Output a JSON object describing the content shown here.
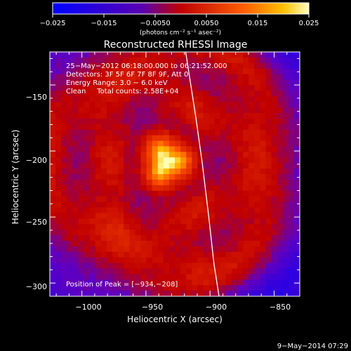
{
  "chart_data": {
    "type": "heatmap",
    "title": "Reconstructed RHESSI Image",
    "xlabel": "Heliocentric X (arcsec)",
    "ylabel": "Heliocentric Y (arcsec)",
    "xlim": [
      -1025,
      -830
    ],
    "ylim": [
      -310,
      -125
    ],
    "x_ticks": [
      -1000,
      -950,
      -900,
      -850
    ],
    "x_tick_labels": [
      "−1000",
      "−950",
      "−900",
      "−850"
    ],
    "y_ticks": [
      -150,
      -200,
      -250,
      -300
    ],
    "y_tick_labels": [
      "−150",
      "−200",
      "−250",
      "−300"
    ],
    "colorbar": {
      "range": [
        -0.025,
        0.025
      ],
      "ticks": [
        -0.025,
        -0.015,
        -0.005,
        0.005,
        0.015,
        0.025
      ],
      "tick_labels": [
        "−0.025",
        "−0.015",
        "−0.0050",
        "0.0050",
        "0.015",
        "0.025"
      ],
      "units": "(photons cm⁻² s⁻¹ asec⁻²)",
      "colors": [
        "#0000ff",
        "#6000c0",
        "#c00000",
        "#ff5000",
        "#ffc000",
        "#ffffb0"
      ]
    },
    "annotations": [
      "25−May−2012 06:18:00.000 to 06:21:52.000",
      "Detectors: 3F 5F 6F 7F 8F 9F, Att 0",
      "Energy Range: 3.0 − 6.0 keV",
      "Clean     Total counts: 2.58E+04"
    ],
    "peak_label": "Position of Peak = [−934,−208]",
    "peak": [
      -934,
      -208
    ],
    "limb_curve": [
      [
        -919,
        -125
      ],
      [
        -911,
        -175
      ],
      [
        -906,
        -210
      ],
      [
        -901,
        -250
      ],
      [
        -897,
        -285
      ],
      [
        -893,
        -310
      ]
    ]
  },
  "footer": {
    "date": "9−May−2014 07:29"
  }
}
